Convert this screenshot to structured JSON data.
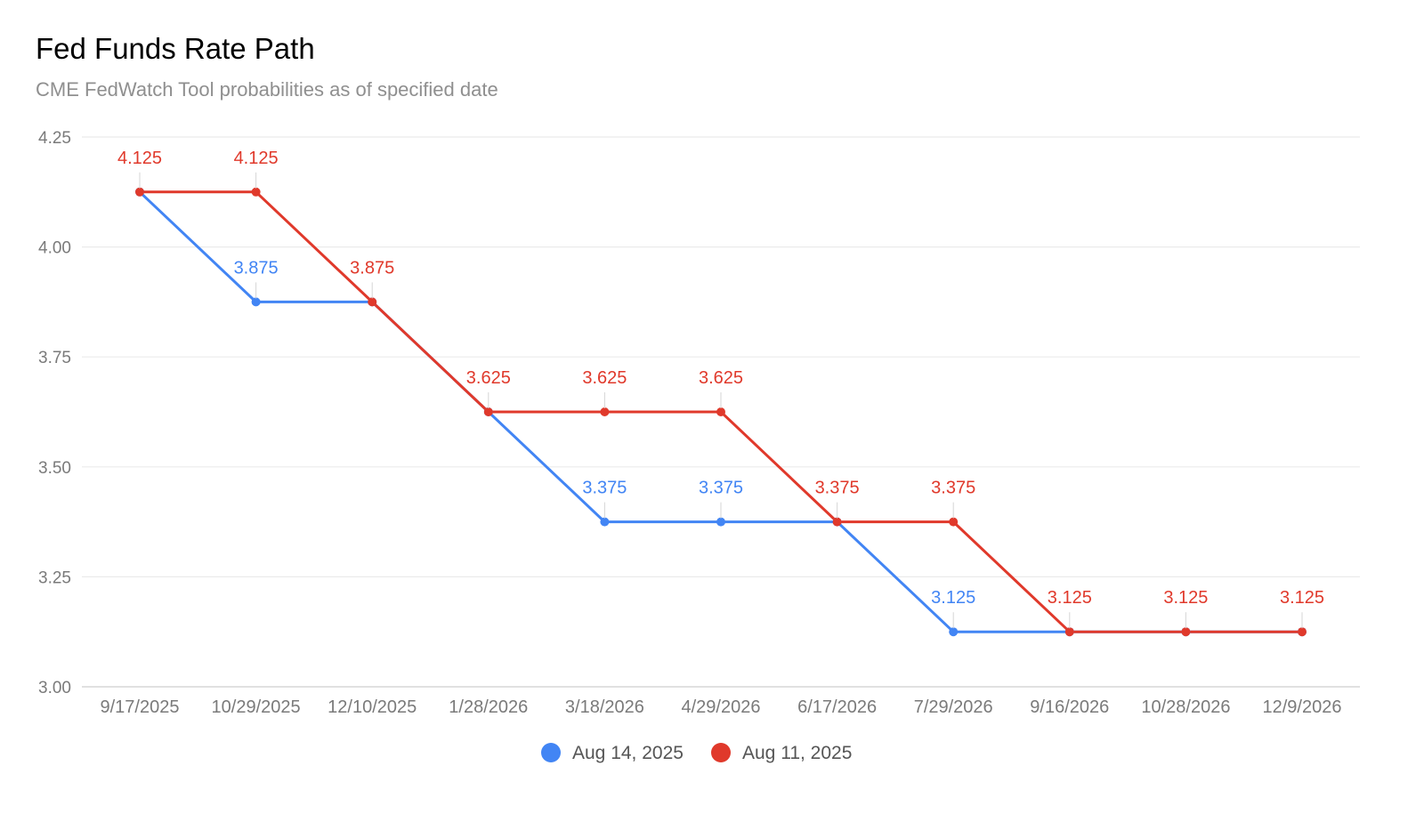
{
  "chart_data": {
    "type": "line",
    "title": "Fed Funds Rate Path",
    "subtitle": "CME FedWatch Tool probabilities as of specified date",
    "xlabel": "",
    "ylabel": "",
    "categories": [
      "9/17/2025",
      "10/29/2025",
      "12/10/2025",
      "1/28/2026",
      "3/18/2026",
      "4/29/2026",
      "6/17/2026",
      "7/29/2026",
      "9/16/2026",
      "10/28/2026",
      "12/9/2026"
    ],
    "ylim": [
      3.0,
      4.25
    ],
    "yticks": [
      "4.25",
      "4.00",
      "3.75",
      "3.50",
      "3.25",
      "3.00"
    ],
    "grid": true,
    "legend_position": "bottom",
    "series": [
      {
        "name": "Aug 14, 2025",
        "color": "#4285f4",
        "values": [
          4.125,
          3.875,
          3.875,
          3.625,
          3.375,
          3.375,
          3.375,
          3.125,
          3.125,
          3.125,
          3.125
        ],
        "labels": [
          null,
          "3.875",
          null,
          null,
          "3.375",
          "3.375",
          null,
          "3.125",
          null,
          null,
          null
        ]
      },
      {
        "name": "Aug 11, 2025",
        "color": "#e0392b",
        "values": [
          4.125,
          4.125,
          3.875,
          3.625,
          3.625,
          3.625,
          3.375,
          3.375,
          3.125,
          3.125,
          3.125
        ],
        "labels": [
          "4.125",
          "4.125",
          "3.875",
          "3.625",
          "3.625",
          "3.625",
          "3.375",
          "3.375",
          "3.125",
          "3.125",
          "3.125"
        ]
      }
    ]
  }
}
